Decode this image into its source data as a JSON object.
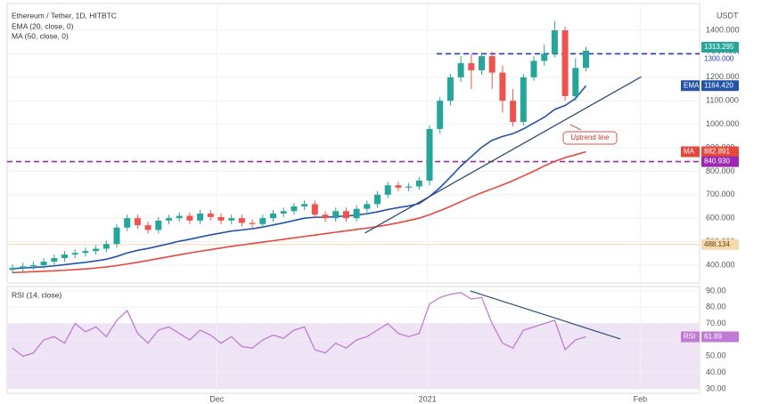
{
  "chart_data": {
    "type": "candlestick",
    "title": "Ethereum / Tether, 1D, HITBTC",
    "currency": "USDT",
    "categories": [
      null,
      null,
      null,
      null,
      null,
      null,
      null,
      null,
      null,
      null,
      null,
      null,
      null,
      null,
      null,
      null,
      null,
      null,
      null,
      null,
      null,
      null,
      null,
      null,
      null,
      null,
      null,
      null,
      null,
      null,
      null,
      null,
      null,
      null,
      null,
      null,
      null,
      null,
      null,
      null,
      null,
      null,
      null,
      null,
      null,
      null,
      null,
      null,
      null,
      null,
      null,
      null,
      null,
      null,
      null,
      null
    ],
    "open": [
      380,
      388,
      395,
      400,
      415,
      430,
      445,
      452,
      460,
      470,
      490,
      560,
      600,
      570,
      550,
      590,
      600,
      610,
      590,
      620,
      605,
      590,
      600,
      580,
      575,
      600,
      620,
      630,
      650,
      660,
      615,
      600,
      630,
      600,
      640,
      660,
      700,
      740,
      730,
      735,
      760,
      980,
      1100,
      1200,
      1260,
      1230,
      1290,
      1220,
      1100,
      1010,
      1200,
      1270,
      1300,
      1400,
      1120,
      1240
    ],
    "high": [
      403,
      410,
      415,
      430,
      445,
      460,
      467,
      475,
      485,
      505,
      575,
      615,
      615,
      585,
      605,
      615,
      625,
      625,
      635,
      635,
      620,
      615,
      615,
      595,
      615,
      635,
      645,
      665,
      675,
      675,
      630,
      645,
      645,
      655,
      675,
      715,
      755,
      755,
      750,
      775,
      995,
      1115,
      1215,
      1290,
      1300,
      1305,
      1310,
      1250,
      1150,
      1215,
      1290,
      1340,
      1440,
      1415,
      1280,
      1330
    ],
    "low": [
      365,
      373,
      380,
      385,
      400,
      415,
      430,
      437,
      445,
      455,
      475,
      545,
      555,
      535,
      535,
      575,
      585,
      575,
      575,
      590,
      575,
      575,
      565,
      560,
      560,
      585,
      605,
      615,
      635,
      600,
      585,
      585,
      585,
      585,
      625,
      645,
      685,
      715,
      715,
      720,
      740,
      960,
      1080,
      1180,
      1150,
      1210,
      1150,
      1050,
      990,
      995,
      1185,
      1250,
      1285,
      1100,
      1100,
      1225
    ],
    "close": [
      388,
      395,
      400,
      415,
      430,
      445,
      452,
      460,
      470,
      490,
      560,
      600,
      570,
      550,
      590,
      600,
      610,
      590,
      620,
      605,
      590,
      600,
      580,
      575,
      600,
      620,
      630,
      650,
      660,
      615,
      600,
      630,
      600,
      640,
      660,
      700,
      740,
      730,
      735,
      760,
      980,
      1100,
      1200,
      1260,
      1230,
      1290,
      1220,
      1100,
      1010,
      1200,
      1270,
      1300,
      1400,
      1120,
      1240,
      1313
    ],
    "up_color": "#26a69a",
    "down_color": "#ef5350",
    "series": [
      {
        "name": "EMA (20, close, 0)",
        "tag": "EMA",
        "color": "#2453a8",
        "tag_value": {
          "value": 1164.42,
          "label": "1164.420"
        },
        "values": [
          385,
          388,
          390,
          393,
          397,
          402,
          407,
          412,
          418,
          425,
          437,
          452,
          463,
          471,
          481,
          491,
          502,
          510,
          520,
          529,
          537,
          545,
          550,
          555,
          562,
          571,
          580,
          590,
          600,
          604,
          604,
          607,
          609,
          613,
          619,
          627,
          637,
          645,
          652,
          662,
          692,
          730,
          775,
          822,
          862,
          902,
          932,
          948,
          960,
          980,
          1005,
          1030,
          1063,
          1080,
          1110,
          1164
        ]
      },
      {
        "name": "MA (50, close, 0)",
        "tag": "MA",
        "color": "#e5483c",
        "tag_value": {
          "value": 882.891,
          "label": "882.891"
        },
        "values": [
          368,
          370,
          372,
          374,
          376,
          378,
          381,
          384,
          388,
          392,
          398,
          405,
          412,
          420,
          428,
          436,
          444,
          452,
          459,
          466,
          473,
          480,
          486,
          492,
          498,
          504,
          510,
          516,
          522,
          528,
          534,
          540,
          546,
          552,
          558,
          564,
          572,
          580,
          590,
          600,
          615,
          632,
          650,
          670,
          690,
          708,
          725,
          742,
          760,
          780,
          800,
          822,
          842,
          858,
          870,
          883
        ]
      }
    ],
    "ylim": [
      324,
      1514
    ],
    "yticks": [
      {
        "value": 400,
        "label": "400.000"
      },
      {
        "value": 500,
        "label": "500.000"
      },
      {
        "value": 600,
        "label": "600.000"
      },
      {
        "value": 700,
        "label": "700.000"
      },
      {
        "value": 800,
        "label": "800.000"
      },
      {
        "value": 900,
        "label": "900.000"
      },
      {
        "value": 1000,
        "label": "1000.000"
      },
      {
        "value": 1100,
        "label": "1100.000"
      },
      {
        "value": 1200,
        "label": "1200.000"
      },
      {
        "value": 1300,
        "label": "1300.000"
      },
      {
        "value": 1400,
        "label": "1400.000"
      }
    ],
    "xticks": [
      {
        "value": 19.6,
        "label": "Dec"
      },
      {
        "value": 39.8,
        "label": "2021"
      },
      {
        "value": 60.2,
        "label": "Feb"
      }
    ],
    "last_price": {
      "value": 1313.295,
      "label": "1313.295"
    },
    "resistance": {
      "value": 1300,
      "label": "1300.000",
      "color": "#1e3fb0"
    },
    "breakout": {
      "value": 840.93,
      "label": "840.930",
      "color": "#9c27b0"
    },
    "support": {
      "value": 488.134,
      "label": "488.134"
    },
    "annotation": "Uptrend line",
    "trendline": {
      "x": [
        33.8,
        60.3
      ],
      "y": [
        537,
        1202
      ]
    },
    "rsi": {
      "name": "RSI (14, close)",
      "tag": "RSI",
      "color": "#c07ad6",
      "last": 61.89,
      "ylim": [
        27.3,
        92.7
      ],
      "band": [
        30,
        70
      ],
      "yticks": [
        {
          "value": 30,
          "label": "30.00"
        },
        {
          "value": 40,
          "label": "40.00"
        },
        {
          "value": 50,
          "label": "50.00"
        },
        {
          "value": 60,
          "label": "60.00"
        },
        {
          "value": 70,
          "label": "70.00"
        },
        {
          "value": 80,
          "label": "80.00"
        },
        {
          "value": 90,
          "label": "90.00"
        }
      ],
      "values": [
        55,
        50,
        52,
        60,
        62,
        58,
        70,
        65,
        68,
        62,
        72,
        78,
        64,
        58,
        66,
        68,
        64,
        60,
        66,
        63,
        58,
        62,
        56,
        55,
        60,
        63,
        61,
        66,
        68,
        54,
        52,
        58,
        55,
        60,
        62,
        66,
        70,
        64,
        62,
        64,
        82,
        86,
        88,
        89,
        85,
        86,
        70,
        58,
        55,
        66,
        68,
        70,
        72,
        54,
        60,
        61.89
      ],
      "divergence": {
        "x": [
          43.9,
          58.3
        ],
        "y": [
          90,
          60.6
        ]
      }
    }
  }
}
